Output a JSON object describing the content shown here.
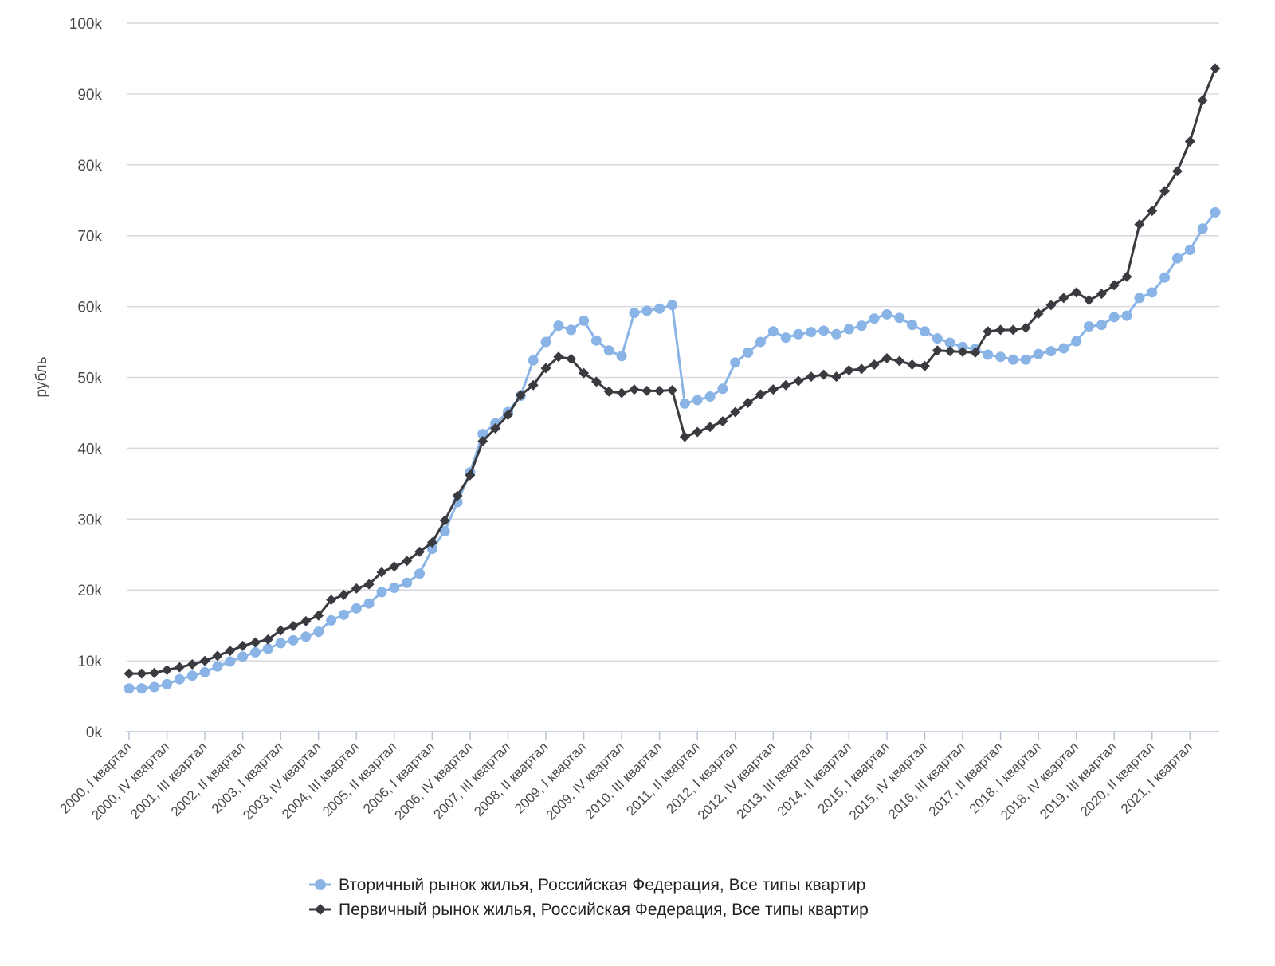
{
  "chart_data": {
    "type": "line",
    "ylabel": "рубль",
    "ylim": [
      0,
      100000
    ],
    "y_ticks": [
      "0k",
      "10k",
      "20k",
      "30k",
      "40k",
      "50k",
      "60k",
      "70k",
      "80k",
      "90k",
      "100k"
    ],
    "y_tick_values": [
      0,
      10000,
      20000,
      30000,
      40000,
      50000,
      60000,
      70000,
      80000,
      90000,
      100000
    ],
    "x": [
      "2000, I квартал",
      "2000, II квартал",
      "2000, III квартал",
      "2000, IV квартал",
      "2001, I квартал",
      "2001, II квартал",
      "2001, III квартал",
      "2001, IV квартал",
      "2002, I квартал",
      "2002, II квартал",
      "2002, III квартал",
      "2002, IV квартал",
      "2003, I квартал",
      "2003, II квартал",
      "2003, III квартал",
      "2003, IV квартал",
      "2004, I квартал",
      "2004, II квартал",
      "2004, III квартал",
      "2004, IV квартал",
      "2005, I квартал",
      "2005, II квартал",
      "2005, III квартал",
      "2005, IV квартал",
      "2006, I квартал",
      "2006, II квартал",
      "2006, III квартал",
      "2006, IV квартал",
      "2007, I квартал",
      "2007, II квартал",
      "2007, III квартал",
      "2007, IV квартал",
      "2008, I квартал",
      "2008, II квартал",
      "2008, III квартал",
      "2008, IV квартал",
      "2009, I квартал",
      "2009, II квартал",
      "2009, III квартал",
      "2009, IV квартал",
      "2010, I квартал",
      "2010, II квартал",
      "2010, III квартал",
      "2010, IV квартал",
      "2011, I квартал",
      "2011, II квартал",
      "2011, III квартал",
      "2011, IV квартал",
      "2012, I квартал",
      "2012, II квартал",
      "2012, III квартал",
      "2012, IV квартал",
      "2013, I квартал",
      "2013, II квартал",
      "2013, III квартал",
      "2013, IV квартал",
      "2014, I квартал",
      "2014, II квартал",
      "2014, III квартал",
      "2014, IV квартал",
      "2015, I квартал",
      "2015, II квартал",
      "2015, III квартал",
      "2015, IV квартал",
      "2016, I квартал",
      "2016, II квартал",
      "2016, III квартал",
      "2016, IV квартал",
      "2017, I квартал",
      "2017, II квартал",
      "2017, III квартал",
      "2017, IV квартал",
      "2018, I квартал",
      "2018, II квартал",
      "2018, III квартал",
      "2018, IV квартал",
      "2019, I квартал",
      "2019, II квартал",
      "2019, III квартал",
      "2019, IV квартал",
      "2020, I квартал",
      "2020, II квартал",
      "2020, III квартал",
      "2020, IV квартал",
      "2021, I квартал",
      "2021, II квартал",
      "2021, III квартал"
    ],
    "x_tick_labels": [
      "2000, I квартал",
      "2000, IV квартал",
      "2001, III квартал",
      "2002, II квартал",
      "2003, I квартал",
      "2003, IV квартал",
      "2004, III квартал",
      "2005, II квартал",
      "2006, I квартал",
      "2006, IV квартал",
      "2007, III квартал",
      "2008, II квартал",
      "2009, I квартал",
      "2009, IV квартал",
      "2010, III квартал",
      "2011, II квартал",
      "2012, I квартал",
      "2012, IV квартал",
      "2013, III квартал",
      "2014, II квартал",
      "2015, I квартал",
      "2015, IV квартал",
      "2016, III квартал",
      "2017, II квартал",
      "2018, I квартал",
      "2018, IV квартал",
      "2019, III квартал",
      "2020, II квартал",
      "2021, I квартал"
    ],
    "grid": true,
    "legend_position": "bottom-center",
    "series": [
      {
        "name": "Вторичный рынок жилья, Российская Федерация, Все типы квартир",
        "color": "#8ab4e6",
        "marker": "circle",
        "values": [
          6100,
          6100,
          6300,
          6700,
          7400,
          7900,
          8400,
          9200,
          9900,
          10600,
          11200,
          11700,
          12500,
          12900,
          13400,
          14100,
          15700,
          16500,
          17400,
          18100,
          19700,
          20300,
          21000,
          22300,
          25800,
          28300,
          32400,
          36600,
          42000,
          43500,
          45100,
          47400,
          52400,
          55000,
          57300,
          56700,
          58000,
          55200,
          53800,
          53000,
          59100,
          59400,
          59700,
          60200,
          46300,
          46800,
          47300,
          48400,
          52100,
          53500,
          55000,
          56500,
          55600,
          56100,
          56400,
          56600,
          56100,
          56800,
          57300,
          58300,
          58900,
          58400,
          57400,
          56500,
          55500,
          54900,
          54300,
          54000,
          53200,
          52900,
          52500,
          52500,
          53300,
          53700,
          54100,
          55100,
          57200,
          57400,
          58500,
          58700,
          61200,
          62000,
          64100,
          66800,
          68000,
          71000,
          73300
        ]
      },
      {
        "name": "Первичный рынок жилья, Российская Федерация, Все типы квартир",
        "color": "#3a3b40",
        "marker": "diamond",
        "values": [
          8200,
          8200,
          8300,
          8700,
          9100,
          9500,
          10000,
          10700,
          11400,
          12100,
          12600,
          13000,
          14300,
          14900,
          15600,
          16400,
          18600,
          19300,
          20200,
          20800,
          22500,
          23300,
          24100,
          25400,
          26700,
          29800,
          33300,
          36200,
          41000,
          42800,
          44700,
          47500,
          48900,
          51300,
          52900,
          52600,
          50600,
          49400,
          48000,
          47800,
          48300,
          48100,
          48100,
          48200,
          41600,
          42300,
          43000,
          43800,
          45100,
          46400,
          47600,
          48300,
          48900,
          49500,
          50100,
          50400,
          50100,
          51000,
          51200,
          51800,
          52700,
          52300,
          51800,
          51600,
          53800,
          53700,
          53600,
          53500,
          56500,
          56700,
          56700,
          57000,
          59000,
          60200,
          61200,
          62000,
          60900,
          61800,
          63000,
          64200,
          71600,
          73500,
          76300,
          79100,
          83300,
          89100,
          93600
        ]
      }
    ]
  }
}
